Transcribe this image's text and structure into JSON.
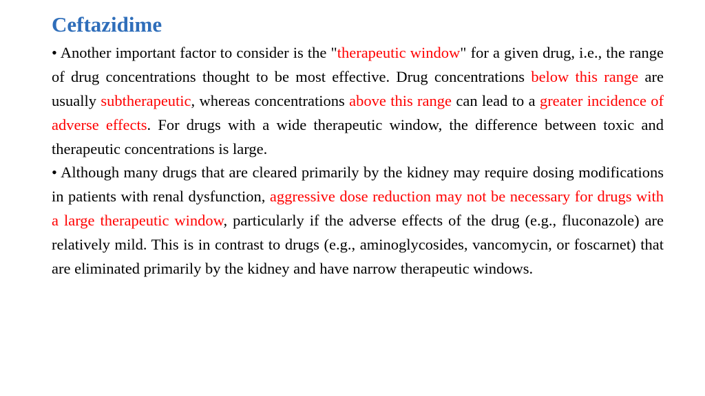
{
  "title": "Ceftazidime",
  "colors": {
    "title": "#2f6eba",
    "body": "#000000",
    "highlight": "#ff0000",
    "background": "#ffffff"
  },
  "typography": {
    "title_fontsize_pt": 23,
    "body_fontsize_pt": 17,
    "font_family": "Times New Roman",
    "title_weight": "bold",
    "line_height": 1.55,
    "text_align": "justify"
  },
  "p1": {
    "t1": "• Another important factor to consider is the \"",
    "h1": "therapeutic window",
    "t2": "\" for a given drug, i.e., the range of drug concentrations thought to be most effective. Drug concentrations ",
    "h2": "below this range",
    "t3": " are usually ",
    "h3": "subtherapeutic",
    "t4": ", whereas concentrations ",
    "h4": "above this range",
    "t5": " can lead to a ",
    "h5": "greater incidence of adverse effects",
    "t6": ". For drugs with a wide therapeutic window, the difference between toxic and therapeutic concentrations is large."
  },
  "p2": {
    "t1": "• Although many drugs that are cleared primarily by the kidney may require dosing modifications in patients with renal dysfunction, ",
    "h1": "aggressive dose reduction may not be necessary for drugs with a large therapeutic window",
    "t2": ", particularly if the adverse effects of the drug (e.g., fluconazole) are relatively mild. This is in contrast to drugs (e.g., aminoglycosides, vancomycin, or foscarnet) that are eliminated primarily by the kidney and have narrow therapeutic windows."
  }
}
